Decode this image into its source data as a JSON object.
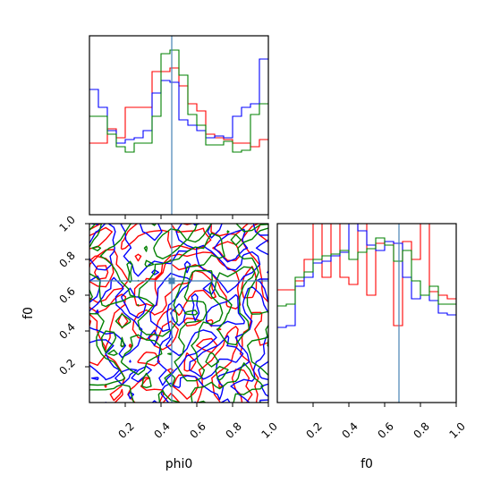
{
  "chart_data": {
    "type": "corner",
    "parameters": [
      "phi0",
      "f0"
    ],
    "xlabels": [
      "phi0",
      "f0"
    ],
    "ylabel_lower": "f0",
    "range": [
      0,
      1
    ],
    "tick_labels": [
      "0.2",
      "0.4",
      "0.6",
      "0.8",
      "1.0"
    ],
    "truths": {
      "phi0": 0.46,
      "f0": 0.68
    },
    "colors": {
      "red": "#ff0000",
      "blue": "#0000ff",
      "green": "#008000",
      "truth": "#4682b4"
    },
    "hist_bins": 20,
    "hist_phi0": {
      "ylim": [
        0,
        1.0
      ],
      "series": [
        {
          "color": "red",
          "values": [
            0.4,
            0.4,
            0.48,
            0.43,
            0.6,
            0.6,
            0.6,
            0.8,
            0.8,
            0.82,
            0.72,
            0.62,
            0.58,
            0.45,
            0.43,
            0.42,
            0.4,
            0.4,
            0.38,
            0.42
          ]
        },
        {
          "color": "blue",
          "values": [
            0.7,
            0.6,
            0.47,
            0.4,
            0.42,
            0.43,
            0.47,
            0.68,
            0.75,
            0.74,
            0.53,
            0.5,
            0.47,
            0.43,
            0.44,
            0.43,
            0.55,
            0.6,
            0.62,
            0.87
          ]
        },
        {
          "color": "green",
          "values": [
            0.55,
            0.55,
            0.45,
            0.38,
            0.35,
            0.4,
            0.4,
            0.55,
            0.9,
            0.92,
            0.78,
            0.56,
            0.5,
            0.39,
            0.39,
            0.41,
            0.35,
            0.36,
            0.56,
            0.62
          ]
        }
      ]
    },
    "hist_f0": {
      "ylim": [
        0,
        1.0
      ],
      "series": [
        {
          "color": "red",
          "values": [
            0.63,
            0.63,
            0.68,
            0.8,
            1.0,
            0.7,
            1.0,
            0.7,
            0.66,
            1.0,
            0.6,
            0.89,
            0.9,
            0.43,
            0.9,
            0.8,
            1.0,
            0.62,
            0.6,
            0.58
          ]
        },
        {
          "color": "blue",
          "values": [
            0.42,
            0.43,
            0.65,
            0.7,
            0.78,
            0.79,
            0.82,
            0.84,
            1.0,
            0.96,
            0.88,
            0.85,
            0.9,
            0.89,
            0.7,
            0.58,
            0.6,
            0.57,
            0.5,
            0.49
          ]
        },
        {
          "color": "green",
          "values": [
            0.54,
            0.55,
            0.7,
            0.73,
            0.8,
            0.82,
            0.83,
            0.85,
            0.8,
            0.84,
            0.86,
            0.92,
            0.88,
            0.79,
            0.85,
            0.68,
            0.6,
            0.65,
            0.55,
            0.55
          ]
        }
      ]
    },
    "contours": {
      "x": "phi0",
      "y": "f0",
      "colors": [
        "red",
        "blue",
        "green"
      ],
      "note_seed": [
        7,
        23,
        51
      ]
    }
  }
}
